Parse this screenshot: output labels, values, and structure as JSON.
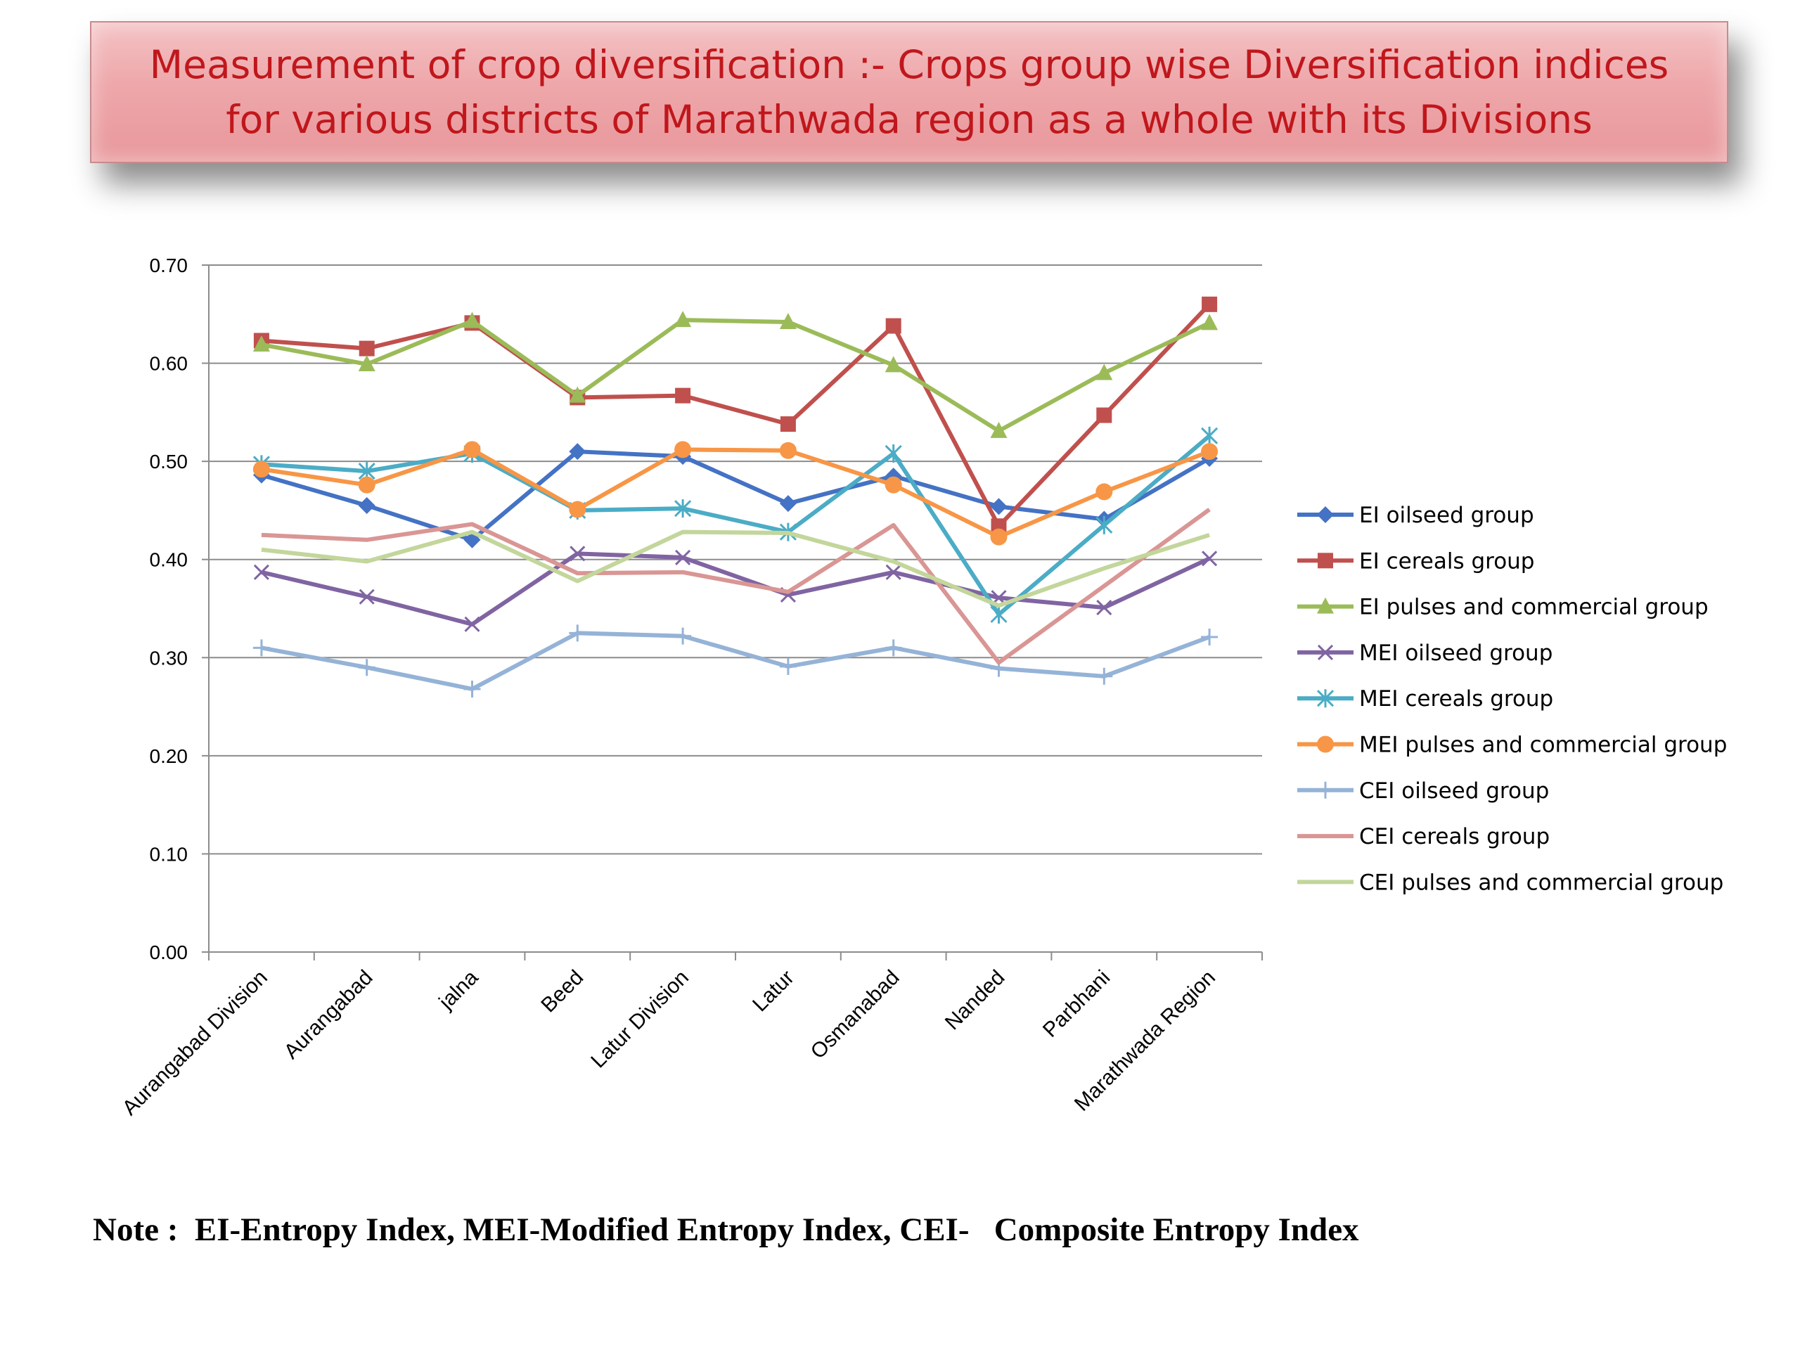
{
  "title": "Measurement of crop diversification :- Crops group wise Diversification indices for various districts of Marathwada region as a whole with its Divisions",
  "note": "Note :  EI-Entropy Index, MEI-Modified Entropy Index, CEI-   Composite Entropy Index",
  "chart_data": {
    "type": "line",
    "title": "",
    "xlabel": "",
    "ylabel": "",
    "ylim": [
      0,
      0.7
    ],
    "yticks": [
      "0.00",
      "0.10",
      "0.20",
      "0.30",
      "0.40",
      "0.50",
      "0.60",
      "0.70"
    ],
    "grid": true,
    "legend_position": "right",
    "categories": [
      "Aurangabad Division",
      "Aurangabad",
      "jalna",
      "Beed",
      "Latur Division",
      "Latur",
      "Osmanabad",
      "Nanded",
      "Parbhani",
      "Marathwada Region"
    ],
    "series": [
      {
        "name": "EI oilseed group",
        "color": "#4472c4",
        "marker": "diamond",
        "values": [
          0.486,
          0.455,
          0.42,
          0.51,
          0.505,
          0.457,
          0.485,
          0.454,
          0.441,
          0.503
        ]
      },
      {
        "name": "EI cereals group",
        "color": "#c0504d",
        "marker": "square",
        "values": [
          0.623,
          0.615,
          0.641,
          0.565,
          0.567,
          0.538,
          0.638,
          0.434,
          0.547,
          0.66
        ]
      },
      {
        "name": "EI pulses and commercial group",
        "color": "#9bbb59",
        "marker": "triangle",
        "values": [
          0.619,
          0.599,
          0.643,
          0.567,
          0.644,
          0.642,
          0.598,
          0.531,
          0.59,
          0.641
        ]
      },
      {
        "name": "MEI oilseed group",
        "color": "#8064a2",
        "marker": "x",
        "values": [
          0.387,
          0.362,
          0.334,
          0.406,
          0.402,
          0.364,
          0.387,
          0.361,
          0.351,
          0.401
        ]
      },
      {
        "name": "MEI cereals group",
        "color": "#4bacc6",
        "marker": "star",
        "values": [
          0.497,
          0.49,
          0.508,
          0.45,
          0.452,
          0.428,
          0.508,
          0.344,
          0.435,
          0.526
        ]
      },
      {
        "name": "MEI pulses and commercial group",
        "color": "#f79646",
        "marker": "circle",
        "values": [
          0.492,
          0.476,
          0.512,
          0.451,
          0.512,
          0.511,
          0.476,
          0.423,
          0.469,
          0.51
        ]
      },
      {
        "name": "CEI oilseed group",
        "color": "#95b3d7",
        "marker": "plus",
        "values": [
          0.31,
          0.29,
          0.268,
          0.325,
          0.322,
          0.291,
          0.31,
          0.289,
          0.281,
          0.321
        ]
      },
      {
        "name": "CEI cereals group",
        "color": "#d99694",
        "marker": "none",
        "values": [
          0.425,
          0.42,
          0.436,
          0.386,
          0.387,
          0.367,
          0.435,
          0.295,
          0.373,
          0.451
        ]
      },
      {
        "name": "CEI pulses and commercial group",
        "color": "#c3d69b",
        "marker": "none",
        "values": [
          0.41,
          0.398,
          0.428,
          0.378,
          0.428,
          0.427,
          0.398,
          0.353,
          0.391,
          0.425
        ]
      }
    ]
  }
}
